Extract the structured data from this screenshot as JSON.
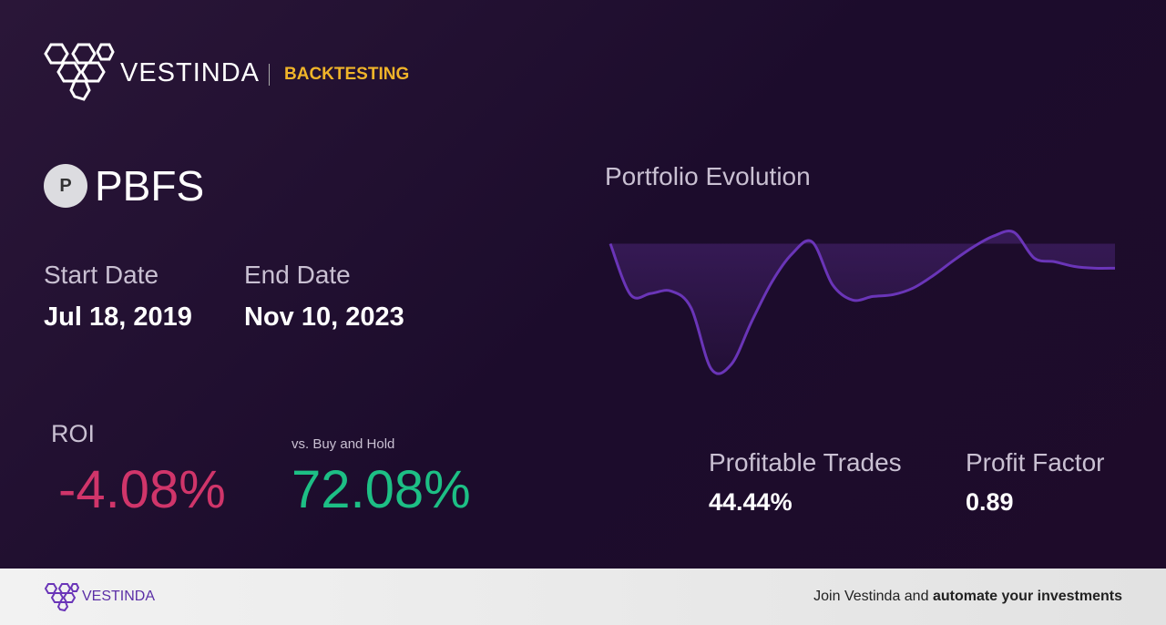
{
  "header": {
    "brand": "VESTINDA",
    "section": "BACKTESTING"
  },
  "ticker": {
    "icon": "P",
    "symbol": "PBFS"
  },
  "dates": {
    "start_label": "Start Date",
    "start": "Jul 18, 2019",
    "end_label": "End Date",
    "end": "Nov 10, 2023"
  },
  "roi": {
    "label": "ROI",
    "value": "-4.08%",
    "compare_label": "vs. Buy and Hold",
    "compare_value": "72.08%"
  },
  "stats": {
    "trades_label": "Profitable Trades",
    "trades": "44.44%",
    "factor_label": "Profit Factor",
    "factor": "0.89"
  },
  "chart_data": {
    "type": "area",
    "title": "Portfolio Evolution",
    "color": "#6a35b8",
    "values": [
      0,
      -8.5,
      -8.3,
      -7.9,
      -10.7,
      -20.9,
      -20.1,
      -13.0,
      -6.4,
      -1.7,
      0.3,
      -6.8,
      -9.4,
      -8.8,
      -8.5,
      -7.4,
      -5.3,
      -2.8,
      -0.5,
      1.3,
      1.9,
      -2.4,
      -3.0,
      -3.8,
      -4.08,
      -4.08
    ]
  },
  "footer": {
    "brand": "VESTINDA",
    "cta_prefix": "Join Vestinda and",
    "cta_bold": "automate your investments"
  }
}
